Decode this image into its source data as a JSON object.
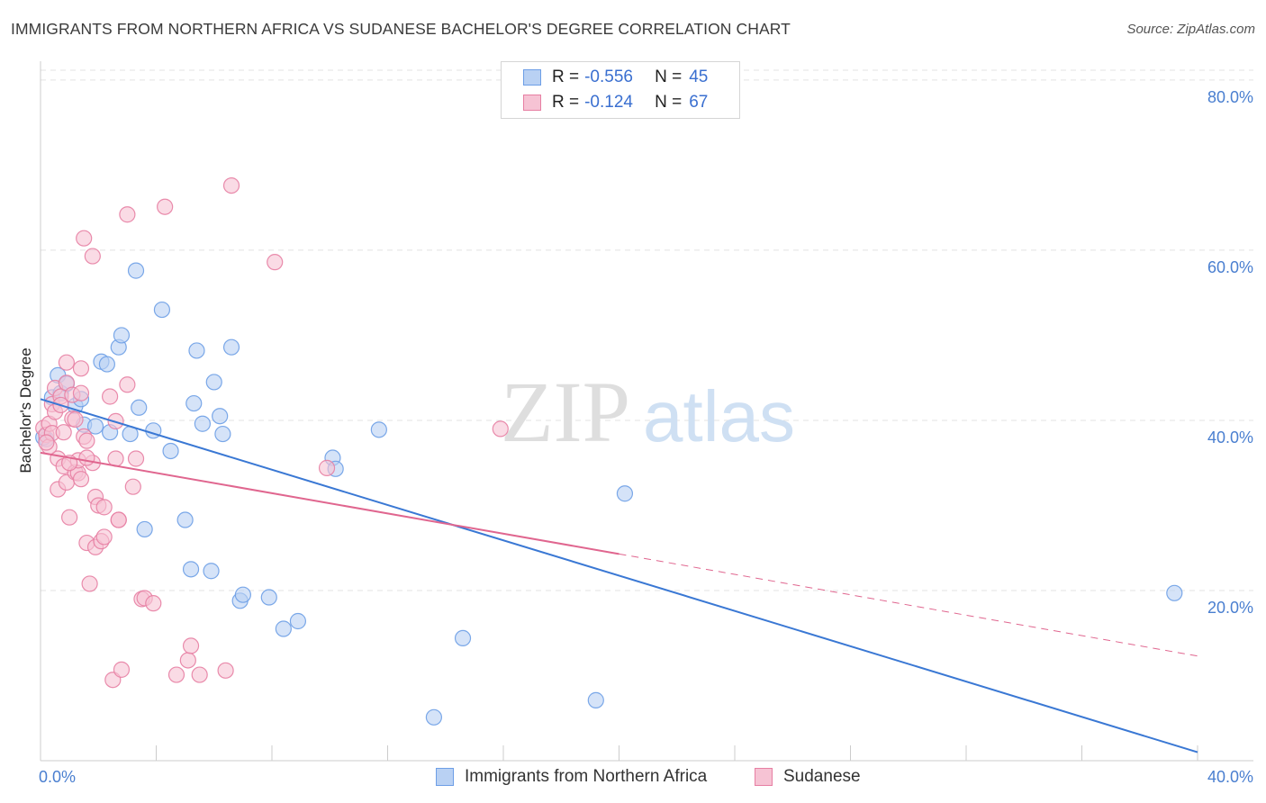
{
  "title": "IMMIGRANTS FROM NORTHERN AFRICA VS SUDANESE BACHELOR'S DEGREE CORRELATION CHART",
  "source": "Source: ZipAtlas.com",
  "watermark": {
    "zip": "ZIP",
    "atlas": "atlas"
  },
  "legend": {
    "rows": [
      {
        "r_label": "R =",
        "r_value": "-0.556",
        "n_label": "N =",
        "n_value": "45"
      },
      {
        "r_label": "R =",
        "r_value": "-0.124",
        "n_label": "N =",
        "n_value": "67"
      }
    ]
  },
  "chart_data": {
    "type": "scatter",
    "title": "IMMIGRANTS FROM NORTHERN AFRICA VS SUDANESE BACHELOR'S DEGREE CORRELATION CHART",
    "xlabel": "",
    "ylabel": "Bachelor's Degree",
    "xlim": [
      0,
      40
    ],
    "ylim": [
      0,
      82
    ],
    "x_ticks": [
      "0.0%",
      "40.0%"
    ],
    "y_ticks": [
      "20.0%",
      "40.0%",
      "60.0%",
      "80.0%"
    ],
    "y_tick_values": [
      20,
      40,
      60,
      80
    ],
    "grid": true,
    "legend_placement": "bottom",
    "series": [
      {
        "name": "Immigrants from Northern Africa",
        "color": "#6d9ee6",
        "fill": "#b9d1f3",
        "trend": {
          "x": [
            0,
            40
          ],
          "y": [
            42.5,
            1
          ],
          "dashed_from": null
        },
        "points": [
          [
            0.2,
            37.8
          ],
          [
            0.4,
            42.7
          ],
          [
            0.6,
            45.3
          ],
          [
            0.7,
            43.2
          ],
          [
            0.9,
            44.3
          ],
          [
            1.2,
            41.7
          ],
          [
            1.4,
            42.5
          ],
          [
            1.5,
            39.5
          ],
          [
            1.9,
            39.3
          ],
          [
            2.1,
            46.9
          ],
          [
            2.3,
            46.6
          ],
          [
            2.4,
            38.6
          ],
          [
            2.7,
            48.6
          ],
          [
            2.8,
            50.0
          ],
          [
            3.1,
            38.4
          ],
          [
            3.3,
            57.6
          ],
          [
            3.4,
            41.5
          ],
          [
            3.6,
            27.2
          ],
          [
            3.9,
            38.8
          ],
          [
            4.2,
            53.0
          ],
          [
            4.5,
            36.4
          ],
          [
            5.0,
            28.3
          ],
          [
            5.2,
            22.5
          ],
          [
            5.3,
            42.0
          ],
          [
            5.4,
            48.2
          ],
          [
            5.6,
            39.6
          ],
          [
            5.9,
            22.3
          ],
          [
            6.0,
            44.5
          ],
          [
            6.2,
            40.5
          ],
          [
            6.3,
            38.4
          ],
          [
            6.6,
            48.6
          ],
          [
            6.9,
            18.8
          ],
          [
            7.0,
            19.5
          ],
          [
            7.9,
            19.2
          ],
          [
            8.4,
            15.5
          ],
          [
            8.9,
            16.4
          ],
          [
            10.1,
            35.6
          ],
          [
            10.2,
            34.3
          ],
          [
            11.7,
            38.9
          ],
          [
            13.6,
            5.1
          ],
          [
            14.6,
            14.4
          ],
          [
            19.2,
            7.1
          ],
          [
            20.2,
            31.4
          ],
          [
            39.2,
            19.7
          ],
          [
            0.1,
            38.0
          ]
        ]
      },
      {
        "name": "Sudanese",
        "color": "#e77fa3",
        "fill": "#f6c3d4",
        "trend": {
          "x": [
            0,
            20,
            40
          ],
          "y": [
            36.2,
            24.3,
            12.3
          ],
          "dashed_from": 20
        },
        "points": [
          [
            0.1,
            39.1
          ],
          [
            0.2,
            38.3
          ],
          [
            0.3,
            39.6
          ],
          [
            0.4,
            41.9
          ],
          [
            0.5,
            41.0
          ],
          [
            0.5,
            43.8
          ],
          [
            0.6,
            35.5
          ],
          [
            0.6,
            31.9
          ],
          [
            0.7,
            42.8
          ],
          [
            0.8,
            34.6
          ],
          [
            0.9,
            46.8
          ],
          [
            0.9,
            44.4
          ],
          [
            0.9,
            32.7
          ],
          [
            1.0,
            28.6
          ],
          [
            1.1,
            40.2
          ],
          [
            1.1,
            43.0
          ],
          [
            1.2,
            33.9
          ],
          [
            1.3,
            33.8
          ],
          [
            1.3,
            35.3
          ],
          [
            1.4,
            46.1
          ],
          [
            1.4,
            43.2
          ],
          [
            1.4,
            33.1
          ],
          [
            1.5,
            61.4
          ],
          [
            1.5,
            38.1
          ],
          [
            1.6,
            37.6
          ],
          [
            1.6,
            25.6
          ],
          [
            1.7,
            20.8
          ],
          [
            1.8,
            35.0
          ],
          [
            1.8,
            59.3
          ],
          [
            1.9,
            25.1
          ],
          [
            1.9,
            31.0
          ],
          [
            2.0,
            30.0
          ],
          [
            2.1,
            25.8
          ],
          [
            2.2,
            26.3
          ],
          [
            2.2,
            29.8
          ],
          [
            2.4,
            42.8
          ],
          [
            2.5,
            9.5
          ],
          [
            2.6,
            39.9
          ],
          [
            2.6,
            35.5
          ],
          [
            2.7,
            28.3
          ],
          [
            2.7,
            28.3
          ],
          [
            2.8,
            10.7
          ],
          [
            3.0,
            44.2
          ],
          [
            3.0,
            64.2
          ],
          [
            3.2,
            32.2
          ],
          [
            3.3,
            35.5
          ],
          [
            3.5,
            19.0
          ],
          [
            3.6,
            19.1
          ],
          [
            3.9,
            18.5
          ],
          [
            4.3,
            65.1
          ],
          [
            4.7,
            10.1
          ],
          [
            5.1,
            11.8
          ],
          [
            5.2,
            13.5
          ],
          [
            5.5,
            10.1
          ],
          [
            6.4,
            10.6
          ],
          [
            6.6,
            67.6
          ],
          [
            8.1,
            58.6
          ],
          [
            9.9,
            34.4
          ],
          [
            15.9,
            39.0
          ],
          [
            0.3,
            36.9
          ],
          [
            0.4,
            38.5
          ],
          [
            0.7,
            41.8
          ],
          [
            0.8,
            38.6
          ],
          [
            1.0,
            35.0
          ],
          [
            1.2,
            40.1
          ],
          [
            0.2,
            37.4
          ],
          [
            1.6,
            35.6
          ]
        ]
      }
    ]
  }
}
